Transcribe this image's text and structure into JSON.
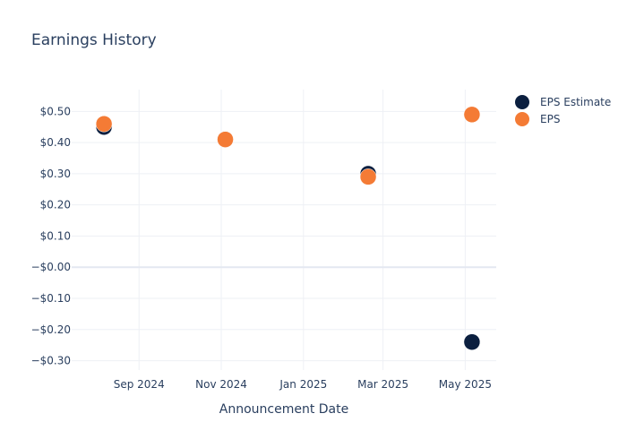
{
  "chart_data": {
    "type": "scatter",
    "title": "Earnings History",
    "xlabel": "Announcement Date",
    "ylabel": "",
    "x_ticks": [
      "Sep 2024",
      "Nov 2024",
      "Jan 2025",
      "Mar 2025",
      "May 2025"
    ],
    "x_tick_dates": [
      "2024-09-01",
      "2024-11-01",
      "2025-01-01",
      "2025-03-01",
      "2025-05-01"
    ],
    "x_range": [
      "2024-07-13",
      "2025-05-24"
    ],
    "y_ticks": [
      {
        "value": 0.5,
        "label": "$0.50"
      },
      {
        "value": 0.4,
        "label": "$0.40"
      },
      {
        "value": 0.3,
        "label": "$0.30"
      },
      {
        "value": 0.2,
        "label": "$0.20"
      },
      {
        "value": 0.1,
        "label": "$0.10"
      },
      {
        "value": 0,
        "label": "−$0.00"
      },
      {
        "value": -0.1,
        "label": "−$0.10"
      },
      {
        "value": -0.2,
        "label": "−$0.20"
      },
      {
        "value": -0.3,
        "label": "−$0.30"
      }
    ],
    "ylim": [
      -0.33,
      0.57
    ],
    "grid": true,
    "legend_position": "top-right",
    "series": [
      {
        "name": "EPS Estimate",
        "color": "#0b1f3f",
        "points": [
          {
            "x": "2024-08-06",
            "y": 0.45
          },
          {
            "x": "2024-11-04",
            "y": 0.41
          },
          {
            "x": "2025-02-18",
            "y": 0.3
          },
          {
            "x": "2025-05-06",
            "y": -0.24
          }
        ]
      },
      {
        "name": "EPS",
        "color": "#f47b35",
        "points": [
          {
            "x": "2024-08-06",
            "y": 0.46
          },
          {
            "x": "2024-11-04",
            "y": 0.41
          },
          {
            "x": "2025-02-18",
            "y": 0.29
          },
          {
            "x": "2025-05-06",
            "y": 0.49
          }
        ]
      }
    ]
  }
}
